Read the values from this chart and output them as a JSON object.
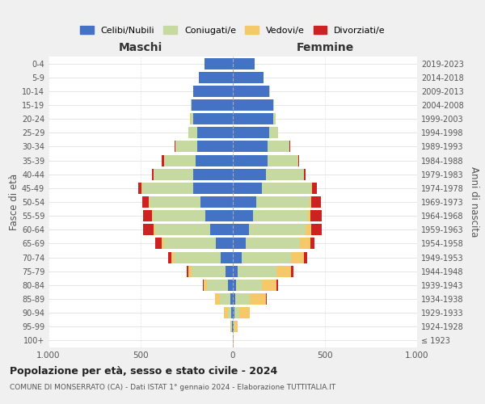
{
  "age_groups": [
    "100+",
    "95-99",
    "90-94",
    "85-89",
    "80-84",
    "75-79",
    "70-74",
    "65-69",
    "60-64",
    "55-59",
    "50-54",
    "45-49",
    "40-44",
    "35-39",
    "30-34",
    "25-29",
    "20-24",
    "15-19",
    "10-14",
    "5-9",
    "0-4"
  ],
  "birth_years": [
    "≤ 1923",
    "1924-1928",
    "1929-1933",
    "1934-1938",
    "1939-1943",
    "1944-1948",
    "1949-1953",
    "1954-1958",
    "1959-1963",
    "1964-1968",
    "1969-1973",
    "1974-1978",
    "1979-1983",
    "1984-1988",
    "1989-1993",
    "1994-1998",
    "1999-2003",
    "2004-2008",
    "2009-2013",
    "2014-2018",
    "2019-2023"
  ],
  "colors": {
    "celibi": "#4472c4",
    "coniugati": "#c5d9a0",
    "vedovi": "#f5c96a",
    "divorziati": "#cc2222"
  },
  "maschi": {
    "celibi": [
      2,
      4,
      8,
      15,
      25,
      40,
      65,
      90,
      125,
      150,
      175,
      215,
      215,
      200,
      195,
      195,
      215,
      225,
      215,
      185,
      155
    ],
    "coniugati": [
      0,
      4,
      18,
      55,
      115,
      185,
      255,
      285,
      295,
      285,
      275,
      275,
      215,
      175,
      115,
      48,
      14,
      5,
      2,
      0,
      0
    ],
    "vedovi": [
      0,
      4,
      22,
      28,
      18,
      18,
      14,
      9,
      9,
      4,
      4,
      4,
      0,
      0,
      0,
      0,
      4,
      0,
      0,
      0,
      0
    ],
    "divorziati": [
      0,
      0,
      0,
      0,
      4,
      9,
      18,
      38,
      58,
      48,
      38,
      18,
      9,
      9,
      4,
      0,
      0,
      0,
      0,
      0,
      0
    ]
  },
  "femmine": {
    "celibi": [
      2,
      4,
      9,
      14,
      19,
      28,
      48,
      68,
      88,
      108,
      128,
      158,
      178,
      188,
      188,
      198,
      218,
      218,
      198,
      168,
      118
    ],
    "coniugati": [
      0,
      4,
      24,
      78,
      138,
      208,
      268,
      298,
      308,
      298,
      288,
      268,
      208,
      168,
      118,
      48,
      14,
      5,
      2,
      0,
      0
    ],
    "vedovi": [
      2,
      19,
      58,
      88,
      78,
      78,
      68,
      54,
      28,
      14,
      9,
      4,
      0,
      0,
      0,
      0,
      0,
      0,
      0,
      0,
      0
    ],
    "divorziati": [
      0,
      0,
      0,
      4,
      9,
      14,
      19,
      24,
      58,
      63,
      53,
      28,
      9,
      4,
      4,
      0,
      0,
      0,
      0,
      0,
      0
    ]
  },
  "title": "Popolazione per età, sesso e stato civile - 2024",
  "subtitle": "COMUNE DI MONSERRATO (CA) - Dati ISTAT 1° gennaio 2024 - Elaborazione TUTTITALIA.IT",
  "ylabel_left": "Fasce di età",
  "ylabel_right": "Anni di nascita",
  "xlabel_maschi": "Maschi",
  "xlabel_femmine": "Femmine",
  "xlim": 1000,
  "legend_labels": [
    "Celibi/Nubili",
    "Coniugati/e",
    "Vedovi/e",
    "Divorziati/e"
  ],
  "bg_color": "#f0f0f0",
  "plot_bg_color": "#ffffff"
}
